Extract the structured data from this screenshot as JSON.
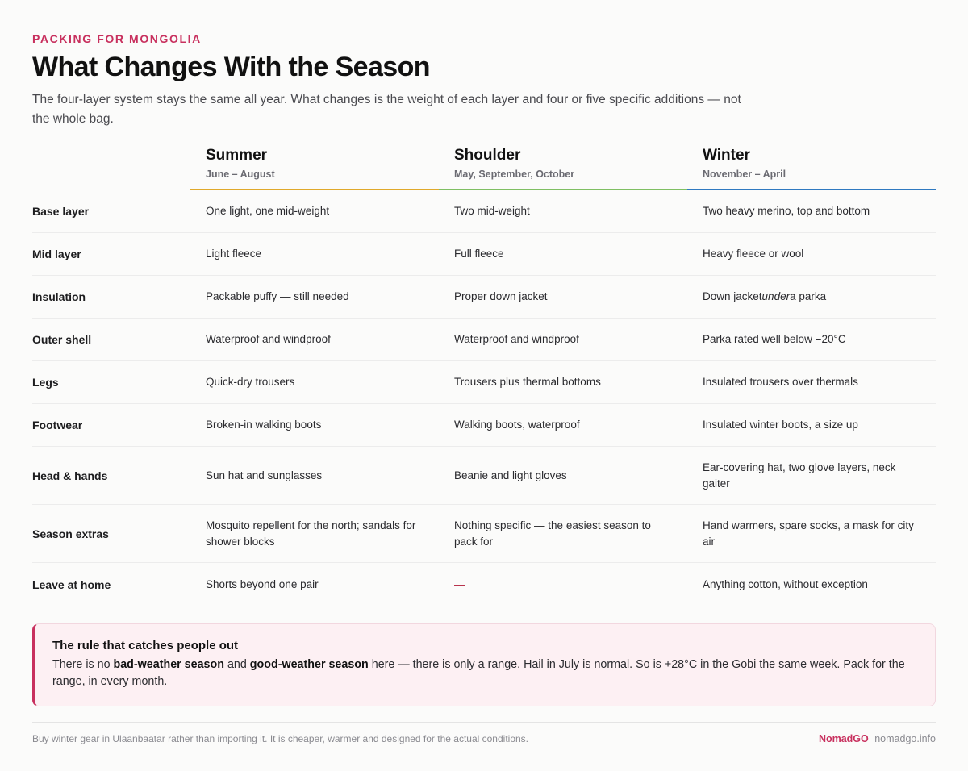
{
  "header": {
    "eyebrow": "PACKING FOR MONGOLIA",
    "title": "What Changes With the Season",
    "lede": "The four-layer system stays the same all year. What changes is the weight of each layer and four or five specific additions — not the whole bag."
  },
  "seasons": [
    {
      "name": "Summer",
      "months": "June – August",
      "accent": "#e0a92b"
    },
    {
      "name": "Shoulder",
      "months": "May, September, October",
      "accent": "#7fbf63"
    },
    {
      "name": "Winter",
      "months": "November – April",
      "accent": "#2f79c0"
    }
  ],
  "rows": [
    {
      "label": "Base layer",
      "summer": "One light, one mid-weight",
      "shoulder": "Two mid-weight",
      "winter": "Two heavy merino, top and bottom"
    },
    {
      "label": "Mid layer",
      "summer": "Light fleece",
      "shoulder": "Full fleece",
      "winter": "Heavy fleece or wool"
    },
    {
      "label": "Insulation",
      "summer": "Packable puffy — still needed",
      "shoulder": "Proper down jacket",
      "winter_pre": "Down jacket",
      "winter_em": "under",
      "winter_post": "a parka"
    },
    {
      "label": "Outer shell",
      "summer": "Waterproof and windproof",
      "shoulder": "Waterproof and windproof",
      "winter": "Parka rated well below −20°C"
    },
    {
      "label": "Legs",
      "summer": "Quick-dry trousers",
      "shoulder": "Trousers plus thermal bottoms",
      "winter": "Insulated trousers over thermals"
    },
    {
      "label": "Footwear",
      "summer": "Broken-in walking boots",
      "shoulder": "Walking boots, waterproof",
      "winter": "Insulated winter boots, a size up"
    },
    {
      "label": "Head & hands",
      "summer": "Sun hat and sunglasses",
      "shoulder": "Beanie and light gloves",
      "winter": "Ear-covering hat, two glove layers, neck gaiter"
    },
    {
      "label": "Season extras",
      "summer": "Mosquito repellent for the north; sandals for shower blocks",
      "shoulder": "Nothing specific — the easiest season to pack for",
      "winter": "Hand warmers, spare socks, a mask for city air"
    },
    {
      "label": "Leave at home",
      "summer": "Shorts beyond one pair",
      "shoulder": "—",
      "winter": "Anything cotton, without exception"
    }
  ],
  "callout": {
    "title": "The rule that catches people out",
    "text_1": "There is no ",
    "bold_1": "bad-weather season",
    "text_2": " and ",
    "bold_2": "good-weather season",
    "text_3": " here — there is only a range. Hail in July is normal. So is +28°C in the Gobi the same week. Pack for the range, in every month."
  },
  "footer": {
    "note": "Buy winter gear in Ulaanbaatar rather than importing it. It is cheaper, warmer and designed for the actual conditions.",
    "brand": "NomadGO",
    "url": "nomadgo.info"
  },
  "colors": {
    "accent": "#c8305e",
    "background": "#fbfbfa"
  }
}
